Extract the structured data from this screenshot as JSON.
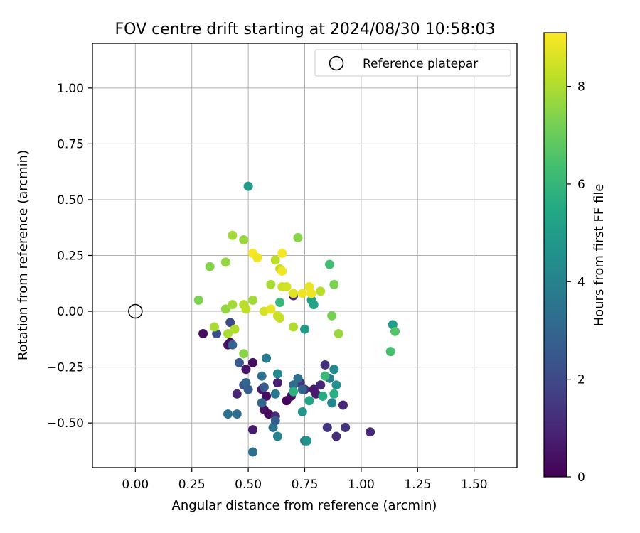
{
  "chart_data": {
    "type": "scatter",
    "title": "FOV centre drift starting at 2024/08/30 10:58:03",
    "xlabel": "Angular distance from reference (arcmin)",
    "ylabel": "Rotation from reference (arcmin)",
    "xlim": [
      -0.19,
      1.69
    ],
    "ylim": [
      -0.7,
      1.2
    ],
    "xticks": [
      "0.00",
      "0.25",
      "0.50",
      "0.75",
      "1.00",
      "1.25",
      "1.50"
    ],
    "yticks": [
      "−0.50",
      "−0.25",
      "0.00",
      "0.25",
      "0.50",
      "0.75",
      "1.00"
    ],
    "grid": true,
    "legend": {
      "position": "top-right",
      "entries": [
        {
          "label": "Reference platepar",
          "marker": "open-circle"
        }
      ]
    },
    "reference_point": {
      "x": 0.0,
      "y": 0.0
    },
    "colorbar": {
      "label": "Hours from first FF file",
      "colormap": "viridis",
      "range": [
        0,
        9.1
      ],
      "ticks": [
        "0",
        "2",
        "4",
        "6",
        "8"
      ]
    },
    "points": [
      {
        "x": 0.3,
        "y": -0.1,
        "h": 0.3
      },
      {
        "x": 0.41,
        "y": -0.15,
        "h": 0.5
      },
      {
        "x": 0.42,
        "y": -0.14,
        "h": 0.2
      },
      {
        "x": 0.45,
        "y": -0.37,
        "h": 0.9
      },
      {
        "x": 0.49,
        "y": -0.26,
        "h": 0.5
      },
      {
        "x": 0.52,
        "y": -0.23,
        "h": 0.3
      },
      {
        "x": 0.52,
        "y": -0.53,
        "h": 0.7
      },
      {
        "x": 0.56,
        "y": -0.35,
        "h": 0.6
      },
      {
        "x": 0.57,
        "y": -0.44,
        "h": 0.4
      },
      {
        "x": 0.58,
        "y": -0.38,
        "h": 0.3
      },
      {
        "x": 0.59,
        "y": -0.46,
        "h": 0.2
      },
      {
        "x": 0.62,
        "y": -0.47,
        "h": 1.1
      },
      {
        "x": 0.63,
        "y": -0.32,
        "h": 0.8
      },
      {
        "x": 0.67,
        "y": -0.4,
        "h": 0.1
      },
      {
        "x": 0.69,
        "y": -0.38,
        "h": 0.3
      },
      {
        "x": 0.7,
        "y": 0.07,
        "h": 1.0
      },
      {
        "x": 0.73,
        "y": -0.32,
        "h": 1.3
      },
      {
        "x": 0.75,
        "y": -0.35,
        "h": 1.2
      },
      {
        "x": 0.79,
        "y": -0.35,
        "h": 0.6
      },
      {
        "x": 0.8,
        "y": -0.37,
        "h": 0.7
      },
      {
        "x": 0.82,
        "y": -0.33,
        "h": 1.0
      },
      {
        "x": 0.84,
        "y": -0.24,
        "h": 1.3
      },
      {
        "x": 0.85,
        "y": -0.52,
        "h": 1.4
      },
      {
        "x": 0.89,
        "y": -0.56,
        "h": 1.2
      },
      {
        "x": 0.92,
        "y": -0.42,
        "h": 1.0
      },
      {
        "x": 0.93,
        "y": -0.52,
        "h": 1.3
      },
      {
        "x": 1.04,
        "y": -0.54,
        "h": 1.1
      },
      {
        "x": 0.36,
        "y": -0.1,
        "h": 2.3
      },
      {
        "x": 0.42,
        "y": -0.05,
        "h": 2.1
      },
      {
        "x": 0.43,
        "y": -0.15,
        "h": 2.8
      },
      {
        "x": 0.41,
        "y": -0.46,
        "h": 3.3
      },
      {
        "x": 0.45,
        "y": -0.46,
        "h": 3.2
      },
      {
        "x": 0.46,
        "y": -0.23,
        "h": 2.5
      },
      {
        "x": 0.48,
        "y": -0.33,
        "h": 2.2
      },
      {
        "x": 0.49,
        "y": -0.32,
        "h": 3.0
      },
      {
        "x": 0.5,
        "y": -0.35,
        "h": 2.7
      },
      {
        "x": 0.52,
        "y": -0.63,
        "h": 3.3
      },
      {
        "x": 0.56,
        "y": -0.29,
        "h": 3.4
      },
      {
        "x": 0.56,
        "y": -0.41,
        "h": 3.0
      },
      {
        "x": 0.57,
        "y": -0.34,
        "h": 2.6
      },
      {
        "x": 0.58,
        "y": -0.21,
        "h": 3.8
      },
      {
        "x": 0.61,
        "y": -0.52,
        "h": 3.5
      },
      {
        "x": 0.62,
        "y": -0.49,
        "h": 2.7
      },
      {
        "x": 0.62,
        "y": -0.37,
        "h": 3.6
      },
      {
        "x": 0.63,
        "y": -0.28,
        "h": 4.3
      },
      {
        "x": 0.63,
        "y": -0.56,
        "h": 4.0
      },
      {
        "x": 0.7,
        "y": -0.33,
        "h": 3.2
      },
      {
        "x": 0.72,
        "y": -0.3,
        "h": 3.4
      },
      {
        "x": 0.74,
        "y": -0.35,
        "h": 2.9
      },
      {
        "x": 0.74,
        "y": -0.45,
        "h": 4.7
      },
      {
        "x": 0.75,
        "y": -0.58,
        "h": 3.9
      },
      {
        "x": 0.76,
        "y": -0.58,
        "h": 4.6
      },
      {
        "x": 0.77,
        "y": -0.4,
        "h": 5.3
      },
      {
        "x": 0.78,
        "y": 0.05,
        "h": 5.1
      },
      {
        "x": 0.79,
        "y": 0.03,
        "h": 5.4
      },
      {
        "x": 0.86,
        "y": -0.3,
        "h": 3.8
      },
      {
        "x": 0.87,
        "y": -0.41,
        "h": 4.1
      },
      {
        "x": 0.88,
        "y": -0.26,
        "h": 4.3
      },
      {
        "x": 0.89,
        "y": -0.33,
        "h": 4.5
      },
      {
        "x": 0.75,
        "y": -0.08,
        "h": 5.0
      },
      {
        "x": 0.5,
        "y": 0.56,
        "h": 5.0
      },
      {
        "x": 1.14,
        "y": -0.06,
        "h": 5.0
      },
      {
        "x": 0.7,
        "y": -0.36,
        "h": 5.8
      },
      {
        "x": 0.83,
        "y": -0.38,
        "h": 5.6
      },
      {
        "x": 0.84,
        "y": -0.29,
        "h": 6.1
      },
      {
        "x": 0.88,
        "y": -0.37,
        "h": 5.7
      },
      {
        "x": 0.64,
        "y": 0.04,
        "h": 6.0
      },
      {
        "x": 0.86,
        "y": 0.21,
        "h": 6.3
      },
      {
        "x": 1.13,
        "y": -0.18,
        "h": 6.4
      },
      {
        "x": 1.15,
        "y": -0.09,
        "h": 6.6
      },
      {
        "x": 0.28,
        "y": 0.05,
        "h": 7.3
      },
      {
        "x": 0.33,
        "y": 0.2,
        "h": 7.4
      },
      {
        "x": 0.4,
        "y": 0.22,
        "h": 7.6
      },
      {
        "x": 0.43,
        "y": 0.34,
        "h": 7.8
      },
      {
        "x": 0.48,
        "y": 0.32,
        "h": 7.7
      },
      {
        "x": 0.4,
        "y": 0.01,
        "h": 7.6
      },
      {
        "x": 0.41,
        "y": -0.1,
        "h": 7.9
      },
      {
        "x": 0.43,
        "y": 0.03,
        "h": 7.8
      },
      {
        "x": 0.44,
        "y": -0.08,
        "h": 8.0
      },
      {
        "x": 0.48,
        "y": 0.03,
        "h": 8.1
      },
      {
        "x": 0.49,
        "y": 0.01,
        "h": 8.2
      },
      {
        "x": 0.52,
        "y": 0.05,
        "h": 7.8
      },
      {
        "x": 0.35,
        "y": -0.07,
        "h": 7.9
      },
      {
        "x": 0.48,
        "y": -0.19,
        "h": 7.5
      },
      {
        "x": 0.57,
        "y": 0.0,
        "h": 8.5
      },
      {
        "x": 0.6,
        "y": 0.12,
        "h": 7.9
      },
      {
        "x": 0.62,
        "y": 0.23,
        "h": 8.2
      },
      {
        "x": 0.63,
        "y": -0.02,
        "h": 8.4
      },
      {
        "x": 0.64,
        "y": -0.03,
        "h": 8.3
      },
      {
        "x": 0.64,
        "y": 0.19,
        "h": 8.3
      },
      {
        "x": 0.65,
        "y": 0.11,
        "h": 8.4
      },
      {
        "x": 0.67,
        "y": 0.11,
        "h": 8.5
      },
      {
        "x": 0.7,
        "y": 0.08,
        "h": 8.7
      },
      {
        "x": 0.7,
        "y": -0.07,
        "h": 8.0
      },
      {
        "x": 0.72,
        "y": 0.33,
        "h": 7.5
      },
      {
        "x": 0.74,
        "y": 0.08,
        "h": 8.9
      },
      {
        "x": 0.77,
        "y": 0.11,
        "h": 8.8
      },
      {
        "x": 0.78,
        "y": 0.08,
        "h": 8.9
      },
      {
        "x": 0.82,
        "y": 0.09,
        "h": 8.1
      },
      {
        "x": 0.87,
        "y": -0.02,
        "h": 7.2
      },
      {
        "x": 0.88,
        "y": 0.12,
        "h": 7.3
      },
      {
        "x": 0.9,
        "y": -0.1,
        "h": 7.7
      },
      {
        "x": 0.52,
        "y": 0.26,
        "h": 9.0
      },
      {
        "x": 0.54,
        "y": 0.24,
        "h": 8.9
      },
      {
        "x": 0.65,
        "y": 0.26,
        "h": 9.0
      },
      {
        "x": 0.65,
        "y": 0.18,
        "h": 8.9
      },
      {
        "x": 0.6,
        "y": 0.01,
        "h": 8.8
      }
    ]
  }
}
